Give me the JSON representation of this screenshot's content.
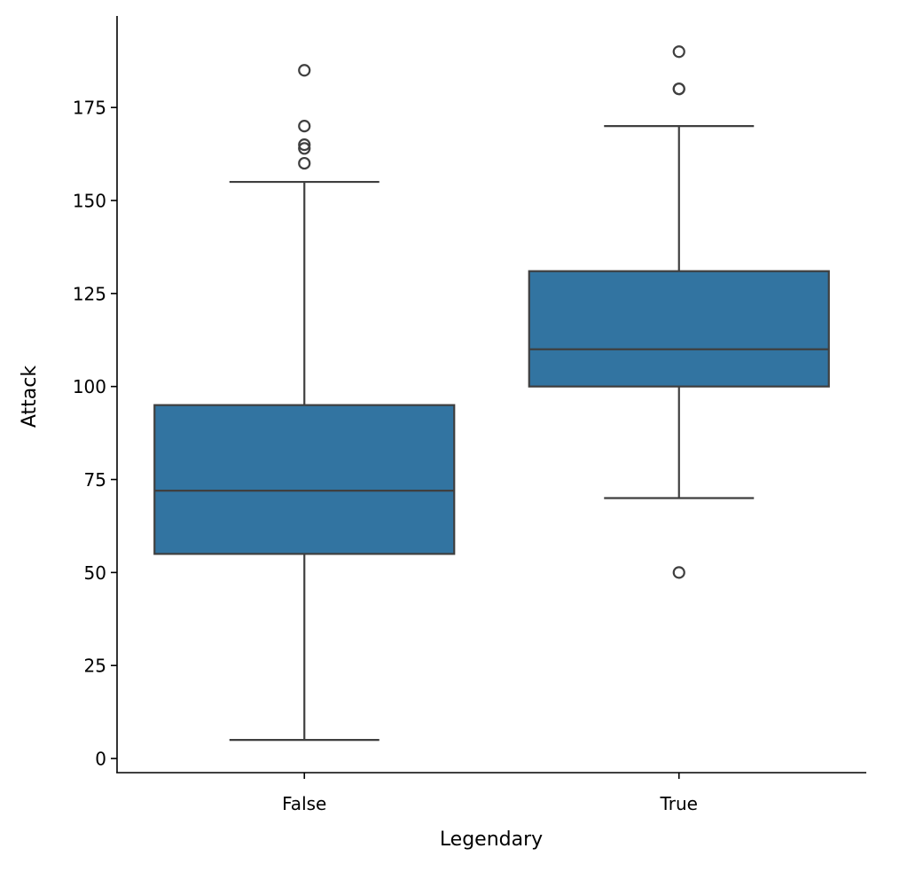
{
  "chart_data": {
    "type": "box",
    "title": "",
    "xlabel": "Legendary",
    "ylabel": "Attack",
    "categories": [
      "False",
      "True"
    ],
    "ylim": [
      -3.8,
      199.6
    ],
    "yticks": [
      0,
      25,
      50,
      75,
      100,
      125,
      150,
      175
    ],
    "grid": false,
    "box_color": "#3274a1",
    "line_color": "#3f3f3f",
    "boxes": [
      {
        "category": "False",
        "whisker_low": 5,
        "q1": 55,
        "median": 72,
        "q3": 95,
        "whisker_high": 155,
        "outliers": [
          160,
          164,
          165,
          170,
          185
        ]
      },
      {
        "category": "True",
        "whisker_low": 70,
        "q1": 100,
        "median": 110,
        "q3": 131,
        "whisker_high": 170,
        "outliers": [
          50,
          180,
          180,
          190
        ]
      }
    ]
  }
}
